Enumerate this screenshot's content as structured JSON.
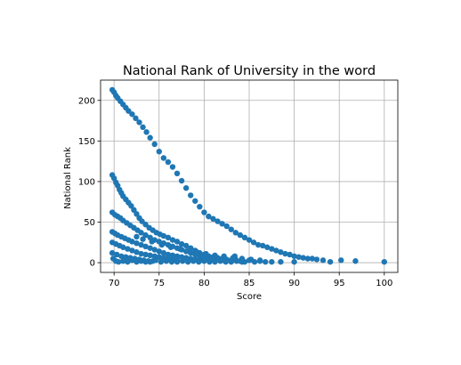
{
  "chart_data": {
    "type": "scatter",
    "title": "National Rank of University in the word",
    "xlabel": "Score",
    "ylabel": "National Rank",
    "xlim": [
      68.5,
      101.5
    ],
    "ylim": [
      -12,
      225
    ],
    "x_ticks": [
      70,
      75,
      80,
      85,
      90,
      95,
      100
    ],
    "y_ticks": [
      0,
      50,
      100,
      150,
      200
    ],
    "grid": true,
    "marker_color": "#1f77b4",
    "series": [
      {
        "values": [
          {
            "x": 69.8,
            "y": 213
          },
          {
            "x": 70.0,
            "y": 210
          },
          {
            "x": 70.2,
            "y": 206
          },
          {
            "x": 70.4,
            "y": 203
          },
          {
            "x": 70.7,
            "y": 199
          },
          {
            "x": 71.0,
            "y": 195
          },
          {
            "x": 71.3,
            "y": 191
          },
          {
            "x": 71.6,
            "y": 187
          },
          {
            "x": 72.0,
            "y": 183
          },
          {
            "x": 72.4,
            "y": 178
          },
          {
            "x": 72.8,
            "y": 173
          },
          {
            "x": 73.2,
            "y": 167
          },
          {
            "x": 73.6,
            "y": 161
          },
          {
            "x": 74.0,
            "y": 154
          },
          {
            "x": 74.5,
            "y": 146
          },
          {
            "x": 75.0,
            "y": 137
          },
          {
            "x": 75.5,
            "y": 129
          },
          {
            "x": 76.0,
            "y": 124
          },
          {
            "x": 76.5,
            "y": 118
          },
          {
            "x": 77.0,
            "y": 110
          },
          {
            "x": 77.5,
            "y": 101
          },
          {
            "x": 78.0,
            "y": 92
          },
          {
            "x": 78.5,
            "y": 83
          },
          {
            "x": 79.0,
            "y": 76
          },
          {
            "x": 79.5,
            "y": 69
          },
          {
            "x": 80.0,
            "y": 62
          },
          {
            "x": 80.5,
            "y": 57
          },
          {
            "x": 81.0,
            "y": 54
          },
          {
            "x": 81.5,
            "y": 51
          },
          {
            "x": 82.0,
            "y": 48
          },
          {
            "x": 82.5,
            "y": 45
          },
          {
            "x": 83.0,
            "y": 41
          },
          {
            "x": 83.5,
            "y": 37
          },
          {
            "x": 84.0,
            "y": 34
          },
          {
            "x": 84.5,
            "y": 31
          },
          {
            "x": 85.0,
            "y": 28
          },
          {
            "x": 85.5,
            "y": 25
          },
          {
            "x": 86.0,
            "y": 22
          },
          {
            "x": 86.5,
            "y": 21
          },
          {
            "x": 87.0,
            "y": 19
          },
          {
            "x": 87.5,
            "y": 17
          },
          {
            "x": 88.0,
            "y": 15
          },
          {
            "x": 88.5,
            "y": 13
          },
          {
            "x": 89.0,
            "y": 11
          },
          {
            "x": 89.5,
            "y": 10
          },
          {
            "x": 90.0,
            "y": 8
          },
          {
            "x": 90.5,
            "y": 7
          },
          {
            "x": 91.0,
            "y": 6
          },
          {
            "x": 91.5,
            "y": 5
          },
          {
            "x": 92.0,
            "y": 5
          },
          {
            "x": 92.5,
            "y": 4
          },
          {
            "x": 93.2,
            "y": 3
          },
          {
            "x": 94.0,
            "y": 1
          },
          {
            "x": 95.2,
            "y": 3
          },
          {
            "x": 96.8,
            "y": 2
          },
          {
            "x": 100.0,
            "y": 1
          },
          {
            "x": 69.8,
            "y": 108
          },
          {
            "x": 70.0,
            "y": 104
          },
          {
            "x": 70.2,
            "y": 99
          },
          {
            "x": 70.4,
            "y": 95
          },
          {
            "x": 70.6,
            "y": 90
          },
          {
            "x": 70.8,
            "y": 86
          },
          {
            "x": 71.0,
            "y": 82
          },
          {
            "x": 71.3,
            "y": 78
          },
          {
            "x": 71.6,
            "y": 74
          },
          {
            "x": 71.9,
            "y": 70
          },
          {
            "x": 72.2,
            "y": 65
          },
          {
            "x": 72.5,
            "y": 60
          },
          {
            "x": 72.8,
            "y": 55
          },
          {
            "x": 73.1,
            "y": 51
          },
          {
            "x": 73.5,
            "y": 47
          },
          {
            "x": 73.9,
            "y": 43
          },
          {
            "x": 74.3,
            "y": 40
          },
          {
            "x": 74.7,
            "y": 37
          },
          {
            "x": 75.1,
            "y": 35
          },
          {
            "x": 75.5,
            "y": 33
          },
          {
            "x": 76.0,
            "y": 31
          },
          {
            "x": 76.5,
            "y": 28
          },
          {
            "x": 77.0,
            "y": 26
          },
          {
            "x": 77.5,
            "y": 23
          },
          {
            "x": 78.0,
            "y": 21
          },
          {
            "x": 78.5,
            "y": 18
          },
          {
            "x": 79.0,
            "y": 15
          },
          {
            "x": 79.5,
            "y": 12
          },
          {
            "x": 80.0,
            "y": 10
          },
          {
            "x": 80.5,
            "y": 8
          },
          {
            "x": 81.0,
            "y": 7
          },
          {
            "x": 81.5,
            "y": 6
          },
          {
            "x": 82.0,
            "y": 5
          },
          {
            "x": 82.5,
            "y": 4
          },
          {
            "x": 83.0,
            "y": 3
          },
          {
            "x": 83.5,
            "y": 4
          },
          {
            "x": 84.0,
            "y": 2
          },
          {
            "x": 84.5,
            "y": 1
          },
          {
            "x": 69.8,
            "y": 62
          },
          {
            "x": 70.1,
            "y": 59
          },
          {
            "x": 70.4,
            "y": 57
          },
          {
            "x": 70.7,
            "y": 55
          },
          {
            "x": 71.0,
            "y": 52
          },
          {
            "x": 71.4,
            "y": 49
          },
          {
            "x": 71.8,
            "y": 46
          },
          {
            "x": 72.2,
            "y": 43
          },
          {
            "x": 72.6,
            "y": 40
          },
          {
            "x": 73.0,
            "y": 37
          },
          {
            "x": 73.5,
            "y": 34
          },
          {
            "x": 74.0,
            "y": 31
          },
          {
            "x": 74.5,
            "y": 28
          },
          {
            "x": 75.0,
            "y": 26
          },
          {
            "x": 75.5,
            "y": 24
          },
          {
            "x": 76.0,
            "y": 22
          },
          {
            "x": 76.5,
            "y": 20
          },
          {
            "x": 77.0,
            "y": 18
          },
          {
            "x": 77.5,
            "y": 16
          },
          {
            "x": 78.0,
            "y": 14
          },
          {
            "x": 78.5,
            "y": 12
          },
          {
            "x": 79.0,
            "y": 10
          },
          {
            "x": 79.5,
            "y": 8
          },
          {
            "x": 80.0,
            "y": 6
          },
          {
            "x": 80.5,
            "y": 5
          },
          {
            "x": 81.0,
            "y": 4
          },
          {
            "x": 82.0,
            "y": 3
          },
          {
            "x": 69.8,
            "y": 38
          },
          {
            "x": 70.1,
            "y": 36
          },
          {
            "x": 70.4,
            "y": 34
          },
          {
            "x": 70.8,
            "y": 32
          },
          {
            "x": 71.2,
            "y": 30
          },
          {
            "x": 71.6,
            "y": 28
          },
          {
            "x": 72.0,
            "y": 26
          },
          {
            "x": 72.5,
            "y": 24
          },
          {
            "x": 73.0,
            "y": 22
          },
          {
            "x": 73.5,
            "y": 20
          },
          {
            "x": 74.0,
            "y": 18
          },
          {
            "x": 74.5,
            "y": 16
          },
          {
            "x": 75.0,
            "y": 14
          },
          {
            "x": 75.5,
            "y": 12
          },
          {
            "x": 76.0,
            "y": 10
          },
          {
            "x": 76.5,
            "y": 9
          },
          {
            "x": 77.0,
            "y": 8
          },
          {
            "x": 77.5,
            "y": 7
          },
          {
            "x": 78.0,
            "y": 6
          },
          {
            "x": 78.5,
            "y": 5
          },
          {
            "x": 79.0,
            "y": 4
          },
          {
            "x": 79.5,
            "y": 3
          },
          {
            "x": 69.8,
            "y": 25
          },
          {
            "x": 70.2,
            "y": 23
          },
          {
            "x": 70.6,
            "y": 21
          },
          {
            "x": 71.0,
            "y": 19
          },
          {
            "x": 71.5,
            "y": 17
          },
          {
            "x": 72.0,
            "y": 15
          },
          {
            "x": 72.5,
            "y": 13
          },
          {
            "x": 73.0,
            "y": 11
          },
          {
            "x": 73.5,
            "y": 10
          },
          {
            "x": 74.0,
            "y": 9
          },
          {
            "x": 74.5,
            "y": 8
          },
          {
            "x": 75.0,
            "y": 7
          },
          {
            "x": 75.5,
            "y": 6
          },
          {
            "x": 76.0,
            "y": 5
          },
          {
            "x": 76.5,
            "y": 4
          },
          {
            "x": 77.0,
            "y": 3
          },
          {
            "x": 69.8,
            "y": 12
          },
          {
            "x": 70.3,
            "y": 10
          },
          {
            "x": 70.8,
            "y": 8
          },
          {
            "x": 71.3,
            "y": 7
          },
          {
            "x": 71.8,
            "y": 6
          },
          {
            "x": 72.3,
            "y": 5
          },
          {
            "x": 72.8,
            "y": 4
          },
          {
            "x": 73.3,
            "y": 3
          },
          {
            "x": 73.8,
            "y": 2
          },
          {
            "x": 74.3,
            "y": 2
          },
          {
            "x": 69.9,
            "y": 5
          },
          {
            "x": 70.2,
            "y": 2
          },
          {
            "x": 70.5,
            "y": 1
          },
          {
            "x": 71.0,
            "y": 2
          },
          {
            "x": 71.5,
            "y": 1
          },
          {
            "x": 72.0,
            "y": 3
          },
          {
            "x": 72.5,
            "y": 1
          },
          {
            "x": 73.0,
            "y": 2
          },
          {
            "x": 73.5,
            "y": 1
          },
          {
            "x": 74.0,
            "y": 1
          },
          {
            "x": 74.6,
            "y": 3
          },
          {
            "x": 75.2,
            "y": 1
          },
          {
            "x": 75.8,
            "y": 2
          },
          {
            "x": 76.4,
            "y": 1
          },
          {
            "x": 77.0,
            "y": 1
          },
          {
            "x": 77.6,
            "y": 2
          },
          {
            "x": 78.2,
            "y": 1
          },
          {
            "x": 78.8,
            "y": 2
          },
          {
            "x": 79.4,
            "y": 1
          },
          {
            "x": 80.0,
            "y": 2
          },
          {
            "x": 80.6,
            "y": 1
          },
          {
            "x": 81.2,
            "y": 1
          },
          {
            "x": 81.8,
            "y": 2
          },
          {
            "x": 82.4,
            "y": 1
          },
          {
            "x": 83.0,
            "y": 1
          },
          {
            "x": 83.6,
            "y": 2
          },
          {
            "x": 84.2,
            "y": 1
          },
          {
            "x": 85.0,
            "y": 3
          },
          {
            "x": 85.6,
            "y": 1
          },
          {
            "x": 86.2,
            "y": 2
          },
          {
            "x": 86.8,
            "y": 1
          },
          {
            "x": 87.5,
            "y": 1
          },
          {
            "x": 88.5,
            "y": 1
          },
          {
            "x": 90.0,
            "y": 1
          },
          {
            "x": 72.5,
            "y": 32
          },
          {
            "x": 73.2,
            "y": 29
          },
          {
            "x": 74.2,
            "y": 26
          },
          {
            "x": 75.3,
            "y": 22
          },
          {
            "x": 76.3,
            "y": 19
          },
          {
            "x": 77.3,
            "y": 17
          },
          {
            "x": 78.3,
            "y": 15
          },
          {
            "x": 79.2,
            "y": 13
          },
          {
            "x": 80.2,
            "y": 11
          },
          {
            "x": 81.2,
            "y": 9
          },
          {
            "x": 82.2,
            "y": 8
          },
          {
            "x": 83.2,
            "y": 6
          },
          {
            "x": 84.2,
            "y": 5
          },
          {
            "x": 85.2,
            "y": 4
          },
          {
            "x": 86.2,
            "y": 3
          },
          {
            "x": 83.4,
            "y": 8
          }
        ]
      }
    ]
  }
}
